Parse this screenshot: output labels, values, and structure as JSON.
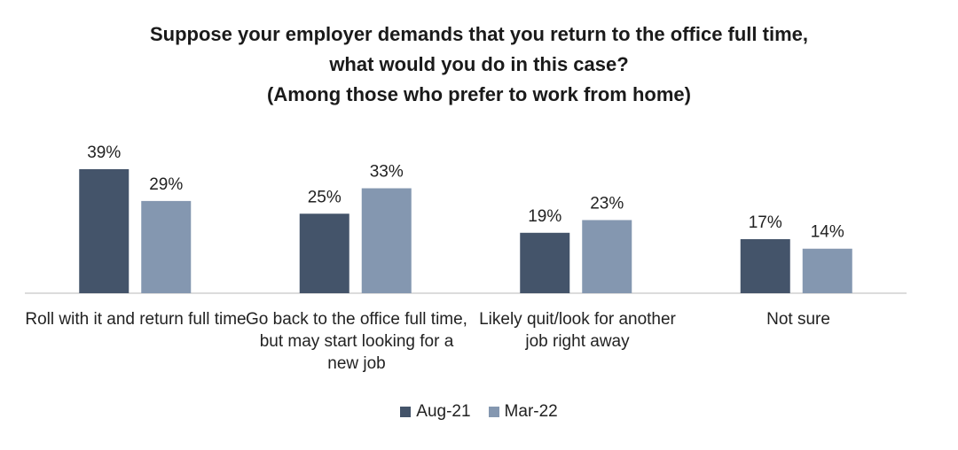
{
  "chart_data": {
    "type": "bar",
    "title": [
      "Suppose your employer demands that you return to the office full time,",
      "what would you do in this case?",
      "(Among those who prefer to work from home)"
    ],
    "categories": [
      "Roll with it and return full time",
      "Go back to the office full time, but may start looking for a new job",
      "Likely quit/look for another job right away",
      "Not sure"
    ],
    "series": [
      {
        "name": "Aug-21",
        "values": [
          39,
          25,
          19,
          17
        ],
        "color": "#44546a"
      },
      {
        "name": "Mar-22",
        "values": [
          29,
          33,
          23,
          14
        ],
        "color": "#8497b0"
      }
    ],
    "value_suffix": "%",
    "ylim": [
      0,
      40
    ],
    "grid": false,
    "legend_position": "bottom"
  }
}
